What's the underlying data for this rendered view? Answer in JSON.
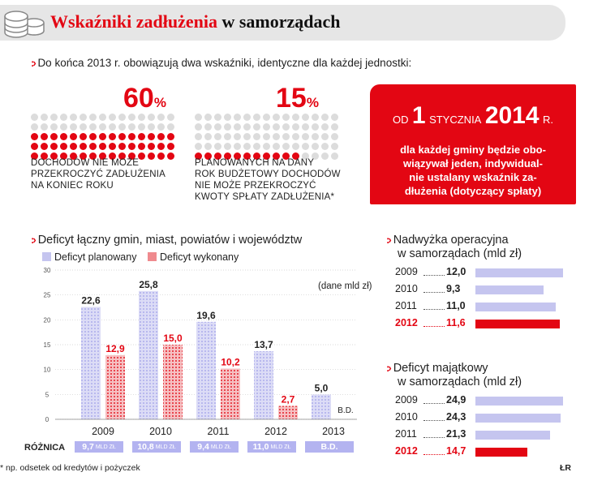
{
  "header": {
    "title_red": "Wskaźniki zadłużenia",
    "title_rest": "w samorządach"
  },
  "intro": {
    "text": "Do końca 2013 r. obowiązują dwa wskaźniki, identyczne dla każdej jednostki:"
  },
  "indicator1": {
    "percent": "60",
    "percent_sign": "%",
    "value": 60,
    "text": "DOCHODÓW NIE MOŻE\nPRZEKROCZYĆ ZADŁUŻENIA\nNA KONIEC ROKU"
  },
  "indicator2": {
    "percent": "15",
    "percent_sign": "%",
    "value": 15,
    "text": "PLANOWANYCH NA DANY\nROK BUDŻETOWY DOCHODÓW\nNIE MOŻE PRZEKROCZYĆ\nKWOTY SPŁATY ZADŁUŻENIA*"
  },
  "redbox": {
    "od": "OD",
    "day": "1",
    "month": "STYCZNIA",
    "year": "2014",
    "r": "R.",
    "text": "dla każdej gminy będzie obo-\nwiązywał jeden, indywidual-\nnie ustalany wskaźnik za-\ndłużenia (dotyczący spłaty)"
  },
  "deficit": {
    "title": "Deficyt łączny gmin, miast, powiatów i województw",
    "legend_planned": "Deficyt planowany",
    "legend_actual": "Deficyt wykonany",
    "unit_note": "(dane mld zł)",
    "diff_label": "RÓŻNICA",
    "bd": "B.D."
  },
  "chart_data": [
    {
      "type": "bar",
      "title": "Deficyt łączny gmin, miast, powiatów i województw",
      "categories": [
        "2009",
        "2010",
        "2011",
        "2012",
        "2013"
      ],
      "series": [
        {
          "name": "Deficyt planowany",
          "values": [
            22.6,
            25.8,
            19.6,
            13.7,
            5.0
          ],
          "labels": [
            "22,6",
            "25,8",
            "19,6",
            "13,7",
            "5,0"
          ]
        },
        {
          "name": "Deficyt wykonany",
          "values": [
            12.9,
            15.0,
            10.2,
            2.7,
            null
          ],
          "labels": [
            "12,9",
            "15,0",
            "10,2",
            "2,7",
            "B.D."
          ]
        }
      ],
      "differences": [
        {
          "value": "9,7",
          "unit": "MLD ZŁ"
        },
        {
          "value": "10,8",
          "unit": "MLD ZŁ"
        },
        {
          "value": "9,4",
          "unit": "MLD ZŁ"
        },
        {
          "value": "11,0",
          "unit": "MLD ZŁ"
        },
        {
          "value": "B.D.",
          "unit": ""
        }
      ],
      "yticks": [
        "0",
        "5",
        "10",
        "15",
        "20",
        "25",
        "30"
      ],
      "ylim": [
        0,
        30
      ],
      "ylabel": "(dane mld zł)",
      "grid": true
    },
    {
      "type": "bar",
      "title": "Nadwyżka operacyjna w samorządach (mld zł)",
      "categories": [
        "2009",
        "2010",
        "2011",
        "2012"
      ],
      "values": [
        12.0,
        9.3,
        11.0,
        11.6
      ],
      "labels": [
        "12,0",
        "9,3",
        "11,0",
        "11,6"
      ],
      "highlight": "2012"
    },
    {
      "type": "bar",
      "title": "Deficyt majątkowy w samorządach (mld zł)",
      "categories": [
        "2009",
        "2010",
        "2011",
        "2012"
      ],
      "values": [
        24.9,
        24.3,
        21.3,
        14.7
      ],
      "labels": [
        "24,9",
        "24,3",
        "21,3",
        "14,7"
      ],
      "highlight": "2012"
    }
  ],
  "surplus": {
    "title1": "Nadwyżka operacyjna",
    "title2": "w samorządach",
    "unit": "(mld zł)"
  },
  "capital": {
    "title1": "Deficyt majątkowy",
    "title2": "w samorządach",
    "unit": "(mld zł)"
  },
  "footer": {
    "note": "* np. odsetek od kredytów i pożyczek",
    "credit": "ŁR"
  },
  "colors": {
    "red": "#e30613",
    "light_red": "#ef8a8e",
    "blue": "#c5c5ef",
    "grey": "#e6e6e6"
  }
}
